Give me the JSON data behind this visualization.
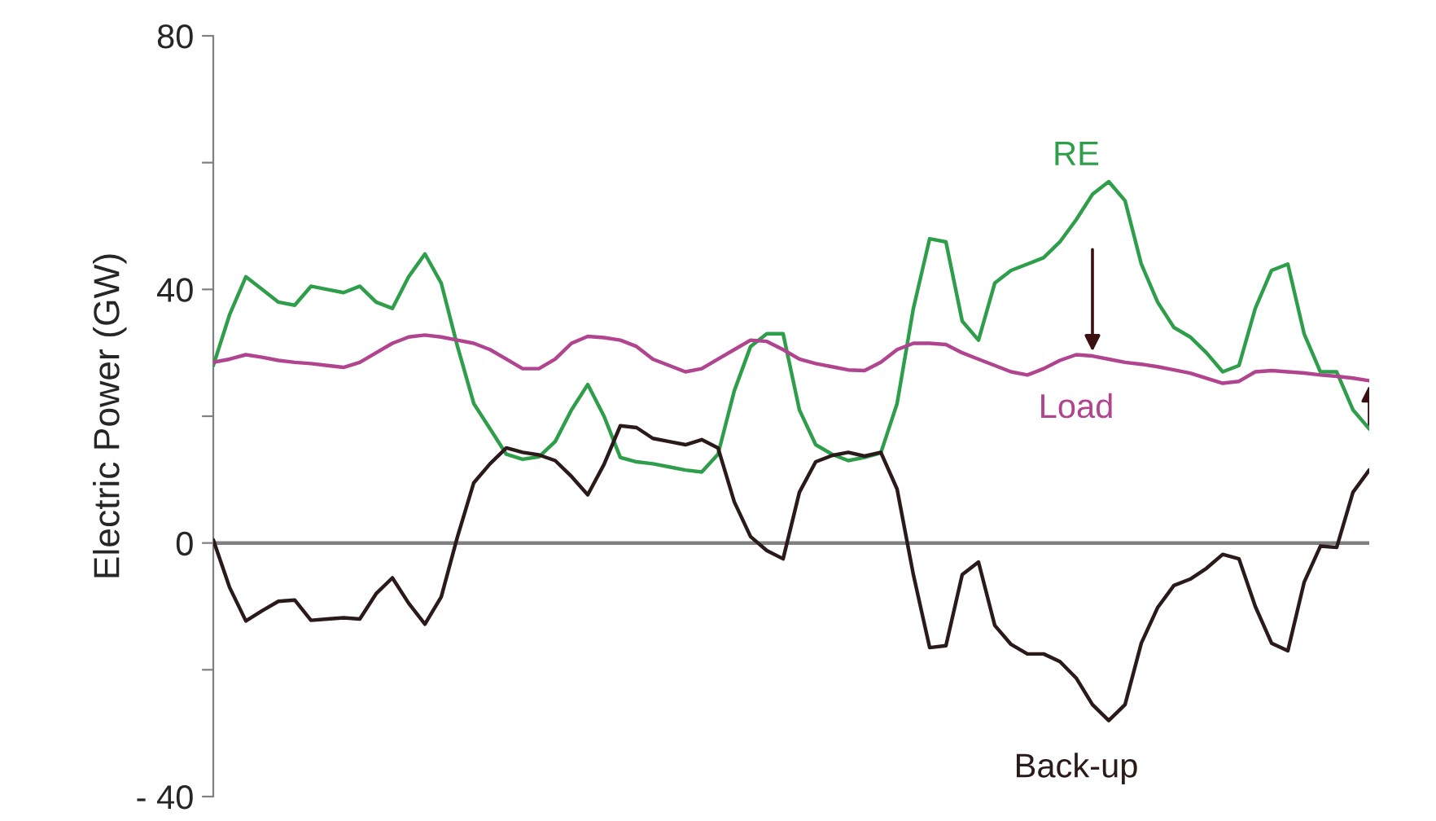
{
  "chart_data": {
    "type": "line",
    "ylabel": "Electric Power (GW)",
    "categories": [
      null,
      null,
      null,
      null,
      null,
      null,
      null,
      null,
      null,
      null,
      null,
      null,
      null,
      null,
      null,
      null,
      null,
      null,
      null,
      null,
      null,
      null,
      null,
      null,
      null,
      null,
      null,
      null,
      null,
      null,
      null,
      null,
      null,
      null,
      null,
      null,
      null,
      null,
      null,
      null,
      null,
      null,
      null,
      null,
      null,
      null,
      null,
      null,
      null,
      null,
      null,
      null,
      null,
      null,
      null,
      null,
      null,
      null,
      null,
      null,
      null,
      null,
      null,
      null,
      null,
      null,
      null,
      null,
      null,
      null,
      null,
      null
    ],
    "series": [
      {
        "name": "RE",
        "color": "#2e9e4a",
        "values": [
          28,
          36,
          42,
          40,
          38,
          37.5,
          40.5,
          40,
          39.5,
          40.5,
          38,
          37,
          42,
          45.6,
          41,
          31,
          22,
          18,
          14,
          13.2,
          13.6,
          16,
          21,
          25,
          20,
          13.5,
          12.8,
          12.5,
          12,
          11.5,
          11.2,
          14,
          24,
          31,
          33,
          33,
          21,
          15.5,
          14,
          13,
          13.5,
          14.2,
          22,
          37,
          48,
          47.5,
          35,
          32,
          41,
          43,
          44,
          45,
          47.5,
          51,
          55,
          57,
          54,
          44,
          38,
          34,
          32.5,
          30,
          27,
          28,
          37,
          43,
          44,
          33,
          27,
          27,
          21,
          18
        ]
      },
      {
        "name": "Load",
        "color": "#b0448f",
        "values": [
          28.5,
          29,
          29.7,
          29.3,
          28.8,
          28.5,
          28.3,
          28,
          27.7,
          28.5,
          30,
          31.5,
          32.5,
          32.8,
          32.5,
          32,
          31.5,
          30.5,
          29,
          27.5,
          27.5,
          29,
          31.5,
          32.6,
          32.4,
          32,
          31,
          29,
          28,
          27,
          27.5,
          29,
          30.5,
          32,
          31.8,
          30.5,
          29,
          28.3,
          27.8,
          27.3,
          27.2,
          28.5,
          30.5,
          31.5,
          31.5,
          31.3,
          30,
          29,
          28,
          27,
          26.5,
          27.5,
          28.8,
          29.7,
          29.5,
          29,
          28.5,
          28.2,
          27.8,
          27.3,
          26.8,
          26,
          25.2,
          25.5,
          27,
          27.2,
          27,
          26.8,
          26.5,
          26.3,
          26,
          25.6
        ]
      },
      {
        "name": "Back-up",
        "color": "#2a1a1a",
        "values": [
          0.5,
          -7,
          -12.3,
          -10.7,
          -9.2,
          -9,
          -12.2,
          -12,
          -11.8,
          -12,
          -8,
          -5.5,
          -9.5,
          -12.8,
          -8.5,
          1,
          9.5,
          12.5,
          15,
          14.3,
          13.9,
          13,
          10.5,
          7.6,
          12.4,
          18.5,
          18.2,
          16.5,
          16,
          15.5,
          16.3,
          15,
          6.5,
          1,
          -1.2,
          -2.5,
          8,
          12.8,
          13.8,
          14.3,
          13.7,
          14.3,
          8.5,
          -5,
          -16.5,
          -16.2,
          -5,
          -3,
          -13,
          -16,
          -17.5,
          -17.5,
          -18.7,
          -21.3,
          -25.5,
          -28,
          -25.5,
          -15.8,
          -10.2,
          -6.7,
          -5.7,
          -4,
          -1.8,
          -2.5,
          -10,
          -15.8,
          -17,
          -6.2,
          -0.5,
          -0.7,
          8,
          11.5
        ]
      }
    ],
    "ylim": [
      -40,
      80
    ],
    "yticks": [
      {
        "value": -40,
        "label": "- 40"
      },
      {
        "value": -20,
        "label": null
      },
      0,
      {
        "value": 20,
        "label": null
      },
      40,
      {
        "value": 60,
        "label": null
      },
      80
    ],
    "ref_lines": [
      {
        "axis": "y",
        "value": 0,
        "color": "#808080"
      }
    ],
    "grid": false,
    "legend": false,
    "marker": "none",
    "line_style": "solid"
  }
}
